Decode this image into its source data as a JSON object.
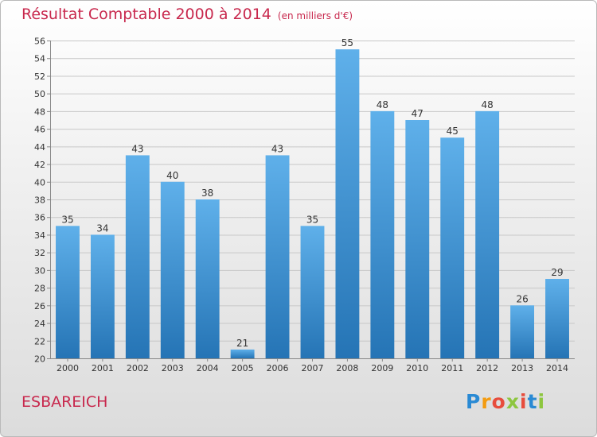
{
  "page": {
    "title": "Résultat Comptable 2000 à 2014",
    "subtitle": "(en milliers d'€)",
    "commune": "ESBAREICH",
    "logo": "Proxiti"
  },
  "colors": {
    "title": "#c8284d",
    "bar_top": "#5fb0ea",
    "bar_bottom": "#2574b5",
    "grid": "#c8c8c8"
  },
  "chart_data": {
    "type": "bar",
    "title": "Résultat Comptable 2000 à 2014",
    "subtitle": "(en milliers d'€)",
    "categories": [
      "2000",
      "2001",
      "2002",
      "2003",
      "2004",
      "2005",
      "2006",
      "2007",
      "2008",
      "2009",
      "2010",
      "2011",
      "2012",
      "2013",
      "2014"
    ],
    "values": [
      35,
      34,
      43,
      40,
      38,
      21,
      43,
      35,
      55,
      48,
      47,
      45,
      48,
      26,
      29
    ],
    "xlabel": "",
    "ylabel": "",
    "ylim": [
      20,
      56
    ],
    "yticks": [
      20,
      22,
      24,
      26,
      28,
      30,
      32,
      34,
      36,
      38,
      40,
      42,
      44,
      46,
      48,
      50,
      52,
      54,
      56
    ],
    "grid": true,
    "legend": "none"
  }
}
